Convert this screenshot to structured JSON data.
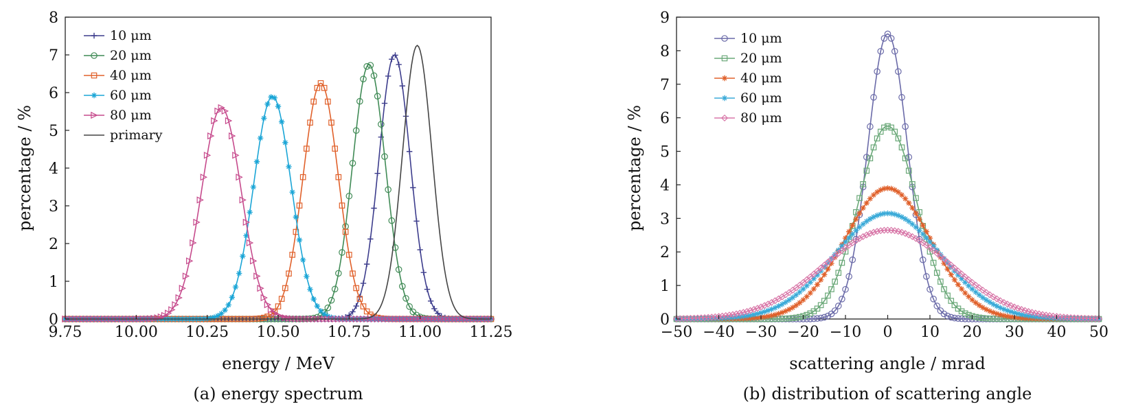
{
  "chart_data": [
    {
      "type": "line",
      "caption": "(a) energy spectrum",
      "xlabel": "energy / MeV",
      "ylabel": "percentage / %",
      "xlim": [
        9.75,
        11.25
      ],
      "ylim": [
        0,
        8
      ],
      "xticks": [
        "9.75",
        "10.00",
        "10.25",
        "10.50",
        "10.75",
        "11.00",
        "11.25"
      ],
      "yticks": [
        "0",
        "1",
        "2",
        "3",
        "4",
        "5",
        "6",
        "7",
        "8"
      ],
      "grid": false,
      "legend_position": "top-left",
      "series": [
        {
          "name": "10 μm",
          "color": "#3c3c8c",
          "marker": "plus",
          "peak_x": 10.91,
          "peak_y": 7.0,
          "sigma": 0.055
        },
        {
          "name": "20 μm",
          "color": "#3f8a55",
          "marker": "circle",
          "peak_x": 10.82,
          "peak_y": 6.75,
          "sigma": 0.058
        },
        {
          "name": "40 μm",
          "color": "#e0602a",
          "marker": "square",
          "peak_x": 10.65,
          "peak_y": 6.25,
          "sigma": 0.062
        },
        {
          "name": "60 μm",
          "color": "#1aa5d6",
          "marker": "star",
          "peak_x": 10.48,
          "peak_y": 5.9,
          "sigma": 0.066
        },
        {
          "name": "80 μm",
          "color": "#c64a8c",
          "marker": "triangle-right",
          "peak_x": 10.3,
          "peak_y": 5.6,
          "sigma": 0.07
        },
        {
          "name": "primary",
          "color": "#444444",
          "marker": "none",
          "peak_x": 10.99,
          "peak_y": 7.25,
          "sigma": 0.052
        }
      ]
    },
    {
      "type": "line",
      "caption": "(b) distribution of scattering angle",
      "xlabel": "scattering angle / mrad",
      "ylabel": "percentage / %",
      "xlim": [
        -50,
        50
      ],
      "ylim": [
        0,
        9
      ],
      "xticks": [
        "−50",
        "−40",
        "−30",
        "−20",
        "−10",
        "0",
        "10",
        "20",
        "30",
        "40",
        "50"
      ],
      "yticks": [
        "0",
        "1",
        "2",
        "3",
        "4",
        "5",
        "6",
        "7",
        "8",
        "9"
      ],
      "grid": false,
      "legend_position": "top-left",
      "series": [
        {
          "name": "10 μm",
          "color": "#6a6aa8",
          "marker": "circle",
          "peak_x": 0,
          "peak_y": 8.5,
          "sigma": 4.7
        },
        {
          "name": "20 μm",
          "color": "#6aa878",
          "marker": "square",
          "peak_x": 0,
          "peak_y": 5.75,
          "sigma": 6.9
        },
        {
          "name": "40 μm",
          "color": "#e0602a",
          "marker": "star",
          "peak_x": 0,
          "peak_y": 3.9,
          "sigma": 10.2
        },
        {
          "name": "60 μm",
          "color": "#3aaad8",
          "marker": "star",
          "peak_x": 0,
          "peak_y": 3.15,
          "sigma": 12.6
        },
        {
          "name": "80 μm",
          "color": "#d877a8",
          "marker": "diamond",
          "peak_x": 0,
          "peak_y": 2.65,
          "sigma": 15.0
        }
      ]
    }
  ]
}
